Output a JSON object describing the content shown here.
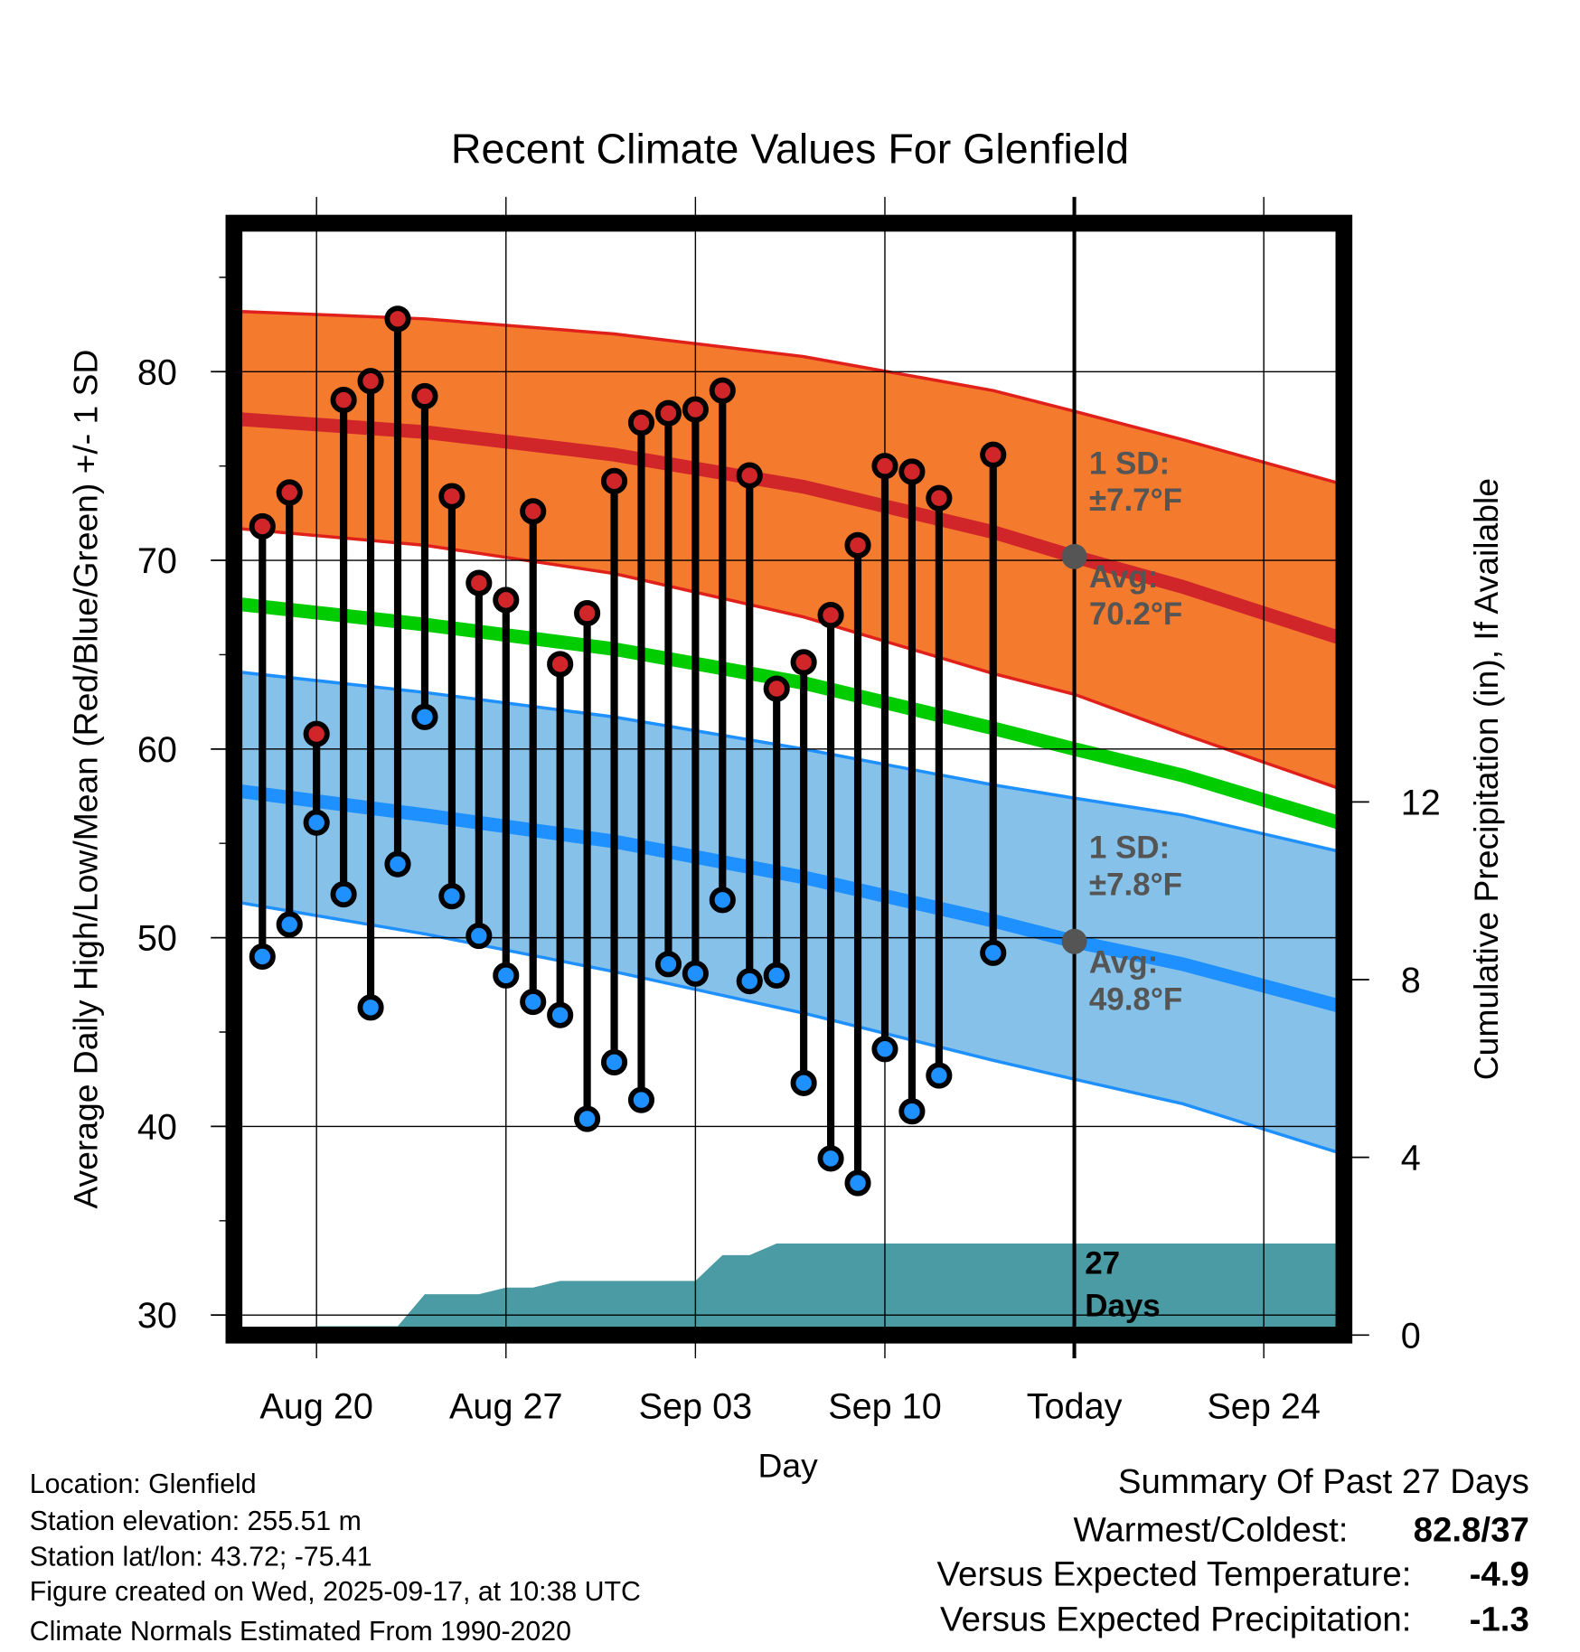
{
  "chart_data": {
    "type": "line",
    "title": "Recent Climate Values For Glenfield",
    "xlabel": "Day",
    "ylabel": "Average Daily High/Low/Mean (Red/Blue/Green) +/- 1 SD",
    "y2label": "Cumulative Precipitation (in), If Available",
    "ylim": [
      30,
      80
    ],
    "yticks": [
      "30",
      "40",
      "50",
      "60",
      "70",
      "80"
    ],
    "y2ticks": [
      "0",
      "4",
      "8",
      "12"
    ],
    "y2_values": [
      0,
      4,
      8,
      12
    ],
    "xticks": [
      {
        "label": "Aug 20",
        "day": 2
      },
      {
        "label": "Aug 27",
        "day": 9
      },
      {
        "label": "Sep 03",
        "day": 16
      },
      {
        "label": "Sep 10",
        "day": 23
      },
      {
        "label": "Today",
        "day": 30
      },
      {
        "label": "Sep 24",
        "day": 37
      }
    ],
    "day0": "Aug 18",
    "observed": [
      {
        "date": "Aug 18",
        "day": 0,
        "high": 71.8,
        "low": 49.0
      },
      {
        "date": "Aug 19",
        "day": 1,
        "high": 73.6,
        "low": 50.7
      },
      {
        "date": "Aug 20",
        "day": 2,
        "high": 60.8,
        "low": 56.1
      },
      {
        "date": "Aug 21",
        "day": 3,
        "high": 78.5,
        "low": 52.3
      },
      {
        "date": "Aug 22",
        "day": 4,
        "high": 79.5,
        "low": 46.3
      },
      {
        "date": "Aug 23",
        "day": 5,
        "high": 82.8,
        "low": 53.9
      },
      {
        "date": "Aug 24",
        "day": 6,
        "high": 78.7,
        "low": 61.7
      },
      {
        "date": "Aug 25",
        "day": 7,
        "high": 73.4,
        "low": 52.2
      },
      {
        "date": "Aug 26",
        "day": 8,
        "high": 68.8,
        "low": 50.1
      },
      {
        "date": "Aug 27",
        "day": 9,
        "high": 67.9,
        "low": 48.0
      },
      {
        "date": "Aug 28",
        "day": 10,
        "high": 72.6,
        "low": 46.6
      },
      {
        "date": "Aug 29",
        "day": 11,
        "high": 64.5,
        "low": 45.9
      },
      {
        "date": "Aug 30",
        "day": 12,
        "high": 67.2,
        "low": 40.4
      },
      {
        "date": "Aug 31",
        "day": 13,
        "high": 74.2,
        "low": 43.4
      },
      {
        "date": "Sep 01",
        "day": 14,
        "high": 77.3,
        "low": 41.4
      },
      {
        "date": "Sep 02",
        "day": 15,
        "high": 77.8,
        "low": 48.6
      },
      {
        "date": "Sep 03",
        "day": 16,
        "high": 78.0,
        "low": 48.1
      },
      {
        "date": "Sep 04",
        "day": 17,
        "high": 79.0,
        "low": 52.0
      },
      {
        "date": "Sep 05",
        "day": 18,
        "high": 74.5,
        "low": 47.7
      },
      {
        "date": "Sep 06",
        "day": 19,
        "high": 63.2,
        "low": 48.0
      },
      {
        "date": "Sep 07",
        "day": 20,
        "high": 64.6,
        "low": 42.3
      },
      {
        "date": "Sep 08",
        "day": 21,
        "high": 67.1,
        "low": 38.3
      },
      {
        "date": "Sep 09",
        "day": 22,
        "high": 70.8,
        "low": 37.0
      },
      {
        "date": "Sep 10",
        "day": 23,
        "high": 75.0,
        "low": 44.1
      },
      {
        "date": "Sep 11",
        "day": 24,
        "high": 74.7,
        "low": 40.8
      },
      {
        "date": "Sep 12",
        "day": 25,
        "high": 73.3,
        "low": 42.7
      },
      {
        "date": "Sep 14",
        "day": 27,
        "high": 75.6,
        "low": 49.2
      }
    ],
    "normals": {
      "days": [
        -1,
        6,
        13,
        20,
        27,
        30,
        34,
        40
      ],
      "high_upper": [
        83.2,
        82.8,
        82.0,
        80.8,
        79.0,
        77.9,
        76.4,
        74.0
      ],
      "high_avg": [
        77.5,
        76.8,
        75.6,
        73.9,
        71.5,
        70.2,
        68.6,
        65.8
      ],
      "high_lower": [
        71.7,
        70.8,
        69.3,
        67.0,
        64.0,
        62.9,
        60.8,
        57.8
      ],
      "mean": [
        67.7,
        66.6,
        65.3,
        63.5,
        61.1,
        60.0,
        58.6,
        56.0
      ],
      "low_upper": [
        64.1,
        63.0,
        61.7,
        60.0,
        58.1,
        57.4,
        56.5,
        54.5
      ],
      "low_avg": [
        57.8,
        56.5,
        55.1,
        53.2,
        50.9,
        49.8,
        48.6,
        46.3
      ],
      "low_lower": [
        51.9,
        50.2,
        48.2,
        46.0,
        43.5,
        42.5,
        41.2,
        38.5
      ]
    },
    "precip": {
      "days": [
        -1,
        2,
        5,
        6,
        8,
        9,
        10,
        11,
        16,
        17,
        18,
        19,
        40
      ],
      "values": [
        0,
        0.2,
        0.2,
        0.92,
        0.92,
        1.07,
        1.07,
        1.22,
        1.22,
        1.8,
        1.8,
        2.06,
        2.06
      ]
    },
    "annotations": {
      "high_sd_1": "1 SD:",
      "high_sd_2": "±7.7°F",
      "high_avg_1": "Avg:",
      "high_avg_2": "70.2°F",
      "high_avg_value": 70.2,
      "low_sd_1": "1 SD:",
      "low_sd_2": "±7.8°F",
      "low_avg_1": "Avg:",
      "low_avg_2": "49.8°F",
      "low_avg_value": 49.8,
      "days_1": "27",
      "days_2": "Days"
    },
    "colors": {
      "high_band": "#f47a2e",
      "high_line": "#d0262a",
      "mean": "#00cc00",
      "low_band": "#85c1e9",
      "low_line": "#1e90ff",
      "precip": "#4a9ba3",
      "high_dot": "#d0262a",
      "low_dot": "#1e90ff"
    }
  },
  "footer": {
    "location": "Location: Glenfield",
    "elevation": "Station elevation: 255.51 m",
    "latlon": "Station lat/lon: 43.72; -75.41",
    "created": "Figure created on Wed, 2025-09-17, at 10:38 UTC",
    "normals": "Climate Normals Estimated From 1990-2020"
  },
  "summary": {
    "title": "Summary Of Past 27 Days",
    "warm_label": "Warmest/Coldest:",
    "warm_value": "82.8/37",
    "temp_label": "Versus Expected Temperature:",
    "temp_value": "-4.9",
    "precip_label": "Versus Expected Precipitation:",
    "precip_value": "-1.3",
    "temp_color": "#1e90ff",
    "precip_color": "#a0522d"
  }
}
